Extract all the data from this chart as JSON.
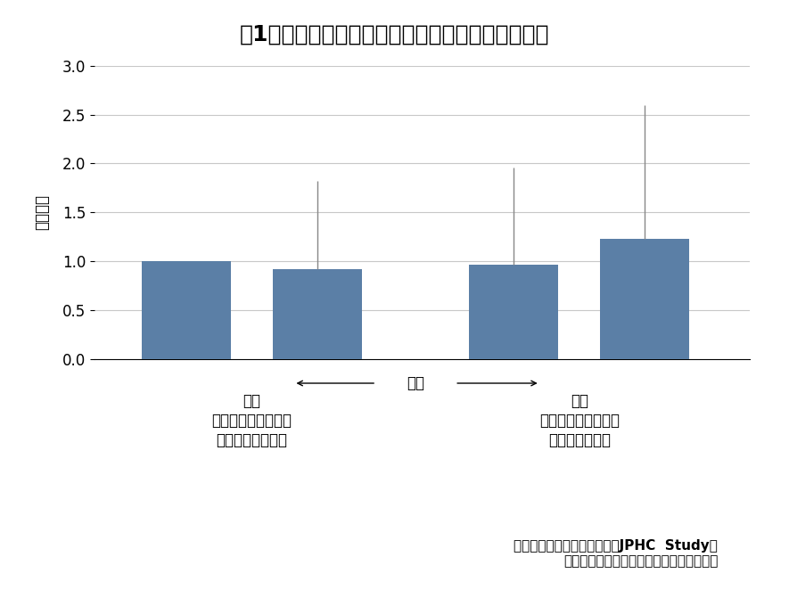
{
  "title": "図1　食事バランス遵守得点とうつ病発症との関連",
  "bar_values": [
    1.0,
    0.92,
    0.96,
    1.23
  ],
  "bar_errors_upper": [
    0.0,
    0.9,
    1.0,
    1.37
  ],
  "bar_errors_lower": [
    0.0,
    0.0,
    0.0,
    0.0
  ],
  "bar_color": "#5b7fa6",
  "bar_positions": [
    1,
    2,
    3.5,
    4.5
  ],
  "bar_width": 0.68,
  "ylim": [
    0,
    3.0
  ],
  "yticks": [
    0,
    0.5,
    1.0,
    1.5,
    2.0,
    2.5,
    3.0
  ],
  "ylabel": "オッズ比",
  "arrow_label": "得点",
  "left_label_line1": "低い",
  "left_label_line2": "（バランスガイドを",
  "left_label_line3": "遵守していない）",
  "right_label_line1": "高い",
  "right_label_line2": "（バランスガイドを",
  "right_label_line3": "遵守している）",
  "source_line1": "出典：多目的コホート研究「JPHC  Study」",
  "source_line2": "国立研究開発法人　国立がん研究センター",
  "background_color": "#ffffff",
  "grid_color": "#c8c8c8",
  "error_bar_color": "#888888",
  "title_fontsize": 18,
  "axis_fontsize": 12,
  "tick_fontsize": 12,
  "source_fontsize": 11
}
